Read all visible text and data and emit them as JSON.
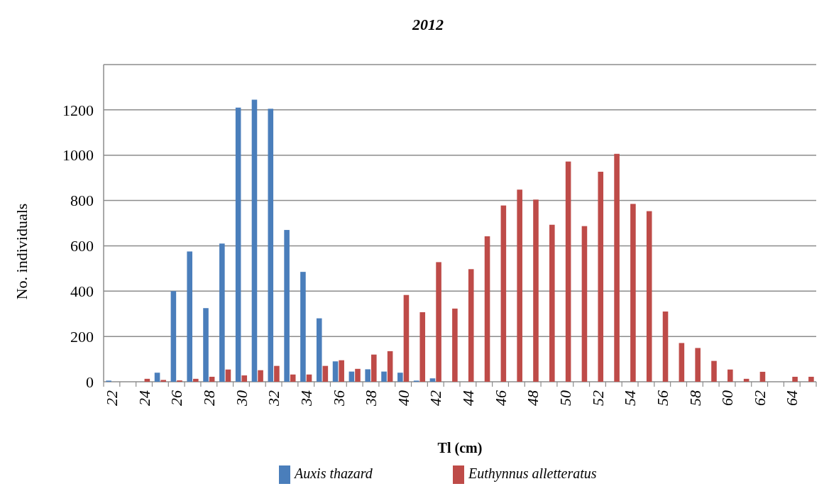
{
  "chart_data": {
    "type": "bar",
    "title": "2012",
    "xlabel": "Tl (cm)",
    "ylabel": "No. individuals",
    "categories": [
      "22",
      null,
      "24",
      null,
      "26",
      null,
      "28",
      null,
      "30",
      null,
      "32",
      null,
      "34",
      null,
      "36",
      null,
      "38",
      null,
      "40",
      null,
      "42",
      null,
      "44",
      null,
      "46",
      null,
      "48",
      null,
      "50",
      null,
      "52",
      null,
      "54",
      null,
      "56",
      null,
      "58",
      null,
      "60",
      null,
      "62",
      null,
      "64",
      null
    ],
    "series": [
      {
        "name": "Auxis thazard",
        "color": "#4a7ebb",
        "values": [
          5,
          0,
          0,
          40,
          400,
          575,
          325,
          610,
          1210,
          1245,
          1205,
          670,
          485,
          280,
          90,
          45,
          55,
          45,
          40,
          5,
          15,
          0,
          0,
          0,
          0,
          0,
          0,
          0,
          0,
          0,
          0,
          0,
          0,
          0,
          0,
          0,
          0,
          0,
          0,
          0,
          0,
          0,
          0,
          0
        ]
      },
      {
        "name": "Euthynnus alletteratus",
        "color": "#be4b48",
        "values": [
          0,
          0,
          13,
          8,
          6,
          13,
          22,
          54,
          28,
          51,
          70,
          32,
          32,
          70,
          95,
          57,
          120,
          135,
          383,
          307,
          528,
          323,
          497,
          642,
          778,
          848,
          804,
          693,
          972,
          687,
          927,
          1006,
          785,
          753,
          310,
          171,
          149,
          92,
          54,
          13,
          44,
          0,
          22,
          22
        ]
      }
    ],
    "ylim": [
      0,
      1400
    ],
    "yticks": [
      0,
      200,
      400,
      600,
      800,
      1000,
      1200,
      {
        "value": 1400,
        "label": null
      }
    ],
    "grid": "y",
    "legend": "bottom"
  }
}
